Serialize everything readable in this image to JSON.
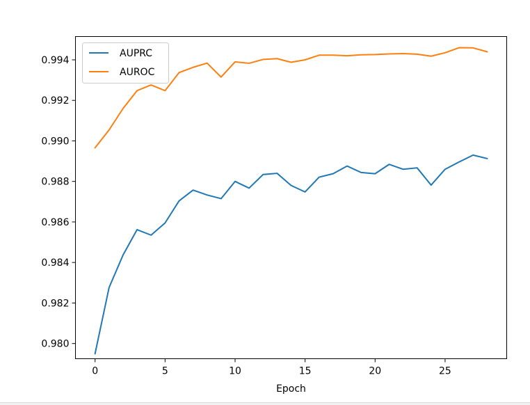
{
  "chart_data": {
    "type": "line",
    "title": "",
    "xlabel": "Epoch",
    "ylabel": "",
    "xlim": [
      -1.4,
      29.4
    ],
    "ylim": [
      0.97925,
      0.99515
    ],
    "xticks": [
      0,
      5,
      10,
      15,
      20,
      25
    ],
    "xtick_labels": [
      "0",
      "5",
      "10",
      "15",
      "20",
      "25"
    ],
    "yticks": [
      0.98,
      0.982,
      0.984,
      0.986,
      0.988,
      0.99,
      0.992,
      0.994
    ],
    "ytick_labels": [
      "0.980",
      "0.982",
      "0.984",
      "0.986",
      "0.988",
      "0.990",
      "0.992",
      "0.994"
    ],
    "grid": false,
    "legend_position": "upper-left",
    "x": [
      0,
      1,
      2,
      3,
      4,
      5,
      6,
      7,
      8,
      9,
      10,
      11,
      12,
      13,
      14,
      15,
      16,
      17,
      18,
      19,
      20,
      21,
      22,
      23,
      24,
      25,
      26,
      27,
      28
    ],
    "series": [
      {
        "name": "AUPRC",
        "color": "#1f77b4",
        "values": [
          0.9795,
          0.98276,
          0.98437,
          0.98562,
          0.98535,
          0.98595,
          0.98704,
          0.98757,
          0.98733,
          0.98715,
          0.988,
          0.98767,
          0.98834,
          0.9884,
          0.9878,
          0.98748,
          0.98821,
          0.98838,
          0.98876,
          0.98844,
          0.98838,
          0.98884,
          0.9886,
          0.98867,
          0.98782,
          0.9886,
          0.98896,
          0.9893,
          0.98913
        ]
      },
      {
        "name": "AUROC",
        "color": "#ff7f0e",
        "values": [
          0.98966,
          0.99054,
          0.9916,
          0.99248,
          0.99276,
          0.99248,
          0.99337,
          0.99363,
          0.99384,
          0.99315,
          0.9939,
          0.99383,
          0.99402,
          0.99406,
          0.99388,
          0.994,
          0.99423,
          0.99423,
          0.9942,
          0.99425,
          0.99426,
          0.99429,
          0.99431,
          0.99428,
          0.99418,
          0.99435,
          0.9946,
          0.99459,
          0.9944
        ]
      }
    ]
  }
}
